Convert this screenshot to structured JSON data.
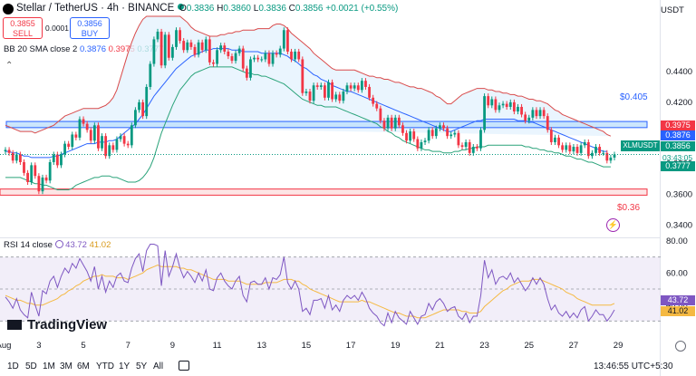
{
  "header": {
    "title": "Stellar / TetherUS · 4h · BINANCE",
    "ohlc": {
      "o": "0.3836",
      "h": "0.3860",
      "l": "0.3836",
      "c": "0.3856",
      "chg": "+0.0021 (+0.55%)"
    },
    "sell_price": "0.3855",
    "sell_label": "SELL",
    "buy_price": "0.3856",
    "buy_label": "BUY",
    "spread": "0.0001"
  },
  "legend": {
    "bb_label": "BB 20 SMA close 2",
    "bb_basis": "0.3876",
    "bb_upper": "0.3975",
    "bb_lower": "0.3777",
    "rsi_label": "RSI 14 close",
    "rsi_value": "43.72",
    "rsi_ma": "41.02"
  },
  "axis": {
    "currency": "USDT",
    "last_time_label": "13:46:55 UTC+5:30"
  },
  "tags": {
    "symbol": "XLMUSDT",
    "countdown": "03:43:05",
    "resistance_label": "$0.405",
    "support_label": "$0.36"
  },
  "brand": "TradingView",
  "toolbar": {
    "ranges": [
      "1D",
      "5D",
      "1M",
      "3M",
      "6M",
      "YTD",
      "1Y",
      "5Y",
      "All"
    ]
  },
  "colors": {
    "up": "#089981",
    "down": "#f23645",
    "basis": "#2962ff",
    "bb_fill": "#e3f2fd",
    "rsi": "#7e57c2",
    "rsi_ma": "#f5b942",
    "zone_blue": "#2962ff",
    "zone_red": "#f23645"
  },
  "chart_data": {
    "type": "candlestick",
    "symbol": "Stellar / TetherUS",
    "timeframe": "4h",
    "price_ylim": [
      0.332,
      0.476
    ],
    "price_ticks": [
      "0.4400",
      "0.4200",
      "0.4000",
      "0.3800",
      "0.3600",
      "0.3400"
    ],
    "x_ticks": [
      {
        "label": "Aug",
        "index": -1
      },
      {
        "label": "3",
        "index": 9
      },
      {
        "label": "5",
        "index": 21
      },
      {
        "label": "7",
        "index": 33
      },
      {
        "label": "9",
        "index": 45
      },
      {
        "label": "11",
        "index": 57
      },
      {
        "label": "13",
        "index": 69
      },
      {
        "label": "15",
        "index": 81
      },
      {
        "label": "17",
        "index": 93
      },
      {
        "label": "19",
        "index": 105
      },
      {
        "label": "21",
        "index": 117
      },
      {
        "label": "23",
        "index": 129
      },
      {
        "label": "25",
        "index": 141
      },
      {
        "label": "27",
        "index": 153
      },
      {
        "label": "29",
        "index": 165
      }
    ],
    "close": [
      0.389,
      0.387,
      0.382,
      0.386,
      0.381,
      0.374,
      0.368,
      0.379,
      0.372,
      0.362,
      0.371,
      0.369,
      0.381,
      0.386,
      0.379,
      0.386,
      0.393,
      0.391,
      0.399,
      0.397,
      0.409,
      0.406,
      0.402,
      0.395,
      0.405,
      0.39,
      0.398,
      0.385,
      0.392,
      0.389,
      0.396,
      0.398,
      0.393,
      0.392,
      0.405,
      0.415,
      0.42,
      0.411,
      0.43,
      0.445,
      0.461,
      0.466,
      0.444,
      0.464,
      0.449,
      0.456,
      0.467,
      0.46,
      0.454,
      0.459,
      0.456,
      0.451,
      0.459,
      0.454,
      0.461,
      0.446,
      0.445,
      0.454,
      0.457,
      0.453,
      0.45,
      0.447,
      0.452,
      0.455,
      0.442,
      0.436,
      0.448,
      0.449,
      0.448,
      0.448,
      0.452,
      0.445,
      0.452,
      0.451,
      0.455,
      0.467,
      0.453,
      0.448,
      0.453,
      0.448,
      0.426,
      0.427,
      0.421,
      0.431,
      0.43,
      0.431,
      0.423,
      0.433,
      0.422,
      0.425,
      0.421,
      0.427,
      0.431,
      0.429,
      0.431,
      0.428,
      0.434,
      0.43,
      0.423,
      0.419,
      0.416,
      0.408,
      0.403,
      0.41,
      0.403,
      0.41,
      0.405,
      0.4,
      0.395,
      0.401,
      0.396,
      0.39,
      0.394,
      0.395,
      0.402,
      0.398,
      0.403,
      0.405,
      0.403,
      0.398,
      0.399,
      0.4,
      0.392,
      0.391,
      0.394,
      0.387,
      0.391,
      0.39,
      0.402,
      0.424,
      0.418,
      0.422,
      0.415,
      0.418,
      0.419,
      0.417,
      0.42,
      0.414,
      0.417,
      0.412,
      0.408,
      0.41,
      0.415,
      0.411,
      0.415,
      0.411,
      0.402,
      0.394,
      0.397,
      0.392,
      0.389,
      0.392,
      0.388,
      0.391,
      0.387,
      0.392,
      0.394,
      0.385,
      0.387,
      0.391,
      0.387,
      0.387,
      0.382,
      0.384,
      0.386
    ],
    "bb_upper": [
      0.405,
      0.404,
      0.403,
      0.402,
      0.401,
      0.401,
      0.401,
      0.401,
      0.4,
      0.401,
      0.402,
      0.403,
      0.404,
      0.405,
      0.407,
      0.409,
      0.411,
      0.412,
      0.413,
      0.414,
      0.415,
      0.416,
      0.416,
      0.416,
      0.416,
      0.416,
      0.417,
      0.418,
      0.42,
      0.423,
      0.428,
      0.436,
      0.444,
      0.452,
      0.459,
      0.465,
      0.47,
      0.474,
      0.477,
      0.479,
      0.48,
      0.481,
      0.482,
      0.482,
      0.481,
      0.48,
      0.478,
      0.476,
      0.474,
      0.472,
      0.469,
      0.467,
      0.466,
      0.465,
      0.464,
      0.463,
      0.463,
      0.463,
      0.464,
      0.464,
      0.465,
      0.465,
      0.466,
      0.466,
      0.467,
      0.467,
      0.467,
      0.467,
      0.468,
      0.468,
      0.468,
      0.468,
      0.47,
      0.471,
      0.471,
      0.47,
      0.468,
      0.465,
      0.463,
      0.461,
      0.459,
      0.457,
      0.455,
      0.452,
      0.45,
      0.448,
      0.446,
      0.444,
      0.442,
      0.441,
      0.441,
      0.441,
      0.441,
      0.441,
      0.441,
      0.44,
      0.439,
      0.438,
      0.437,
      0.437,
      0.436,
      0.436,
      0.435,
      0.435,
      0.434,
      0.433,
      0.433,
      0.432,
      0.431,
      0.43,
      0.43,
      0.429,
      0.429,
      0.428,
      0.427,
      0.426,
      0.424,
      0.423,
      0.421,
      0.419,
      0.419,
      0.421,
      0.423,
      0.425,
      0.426,
      0.427,
      0.428,
      0.429,
      0.429,
      0.429,
      0.428,
      0.428,
      0.427,
      0.427,
      0.426,
      0.426,
      0.425,
      0.425,
      0.424,
      0.424,
      0.423,
      0.422,
      0.422,
      0.421,
      0.421,
      0.42,
      0.419,
      0.417,
      0.415,
      0.414,
      0.412,
      0.411,
      0.41,
      0.409,
      0.408,
      0.407,
      0.406,
      0.405,
      0.404,
      0.403,
      0.402,
      0.401,
      0.399,
      0.398
    ],
    "bb_basis": [
      0.388,
      0.388,
      0.387,
      0.387,
      0.386,
      0.385,
      0.385,
      0.384,
      0.384,
      0.384,
      0.384,
      0.384,
      0.384,
      0.385,
      0.385,
      0.386,
      0.387,
      0.388,
      0.389,
      0.39,
      0.391,
      0.392,
      0.393,
      0.393,
      0.393,
      0.394,
      0.394,
      0.394,
      0.395,
      0.395,
      0.396,
      0.398,
      0.4,
      0.402,
      0.404,
      0.406,
      0.409,
      0.412,
      0.416,
      0.42,
      0.424,
      0.427,
      0.43,
      0.433,
      0.436,
      0.439,
      0.442,
      0.444,
      0.446,
      0.448,
      0.45,
      0.451,
      0.452,
      0.453,
      0.454,
      0.454,
      0.455,
      0.455,
      0.455,
      0.455,
      0.455,
      0.454,
      0.454,
      0.454,
      0.453,
      0.453,
      0.453,
      0.453,
      0.453,
      0.452,
      0.452,
      0.452,
      0.452,
      0.452,
      0.452,
      0.451,
      0.45,
      0.448,
      0.447,
      0.445,
      0.443,
      0.442,
      0.44,
      0.438,
      0.437,
      0.435,
      0.434,
      0.433,
      0.431,
      0.43,
      0.429,
      0.428,
      0.427,
      0.427,
      0.426,
      0.425,
      0.424,
      0.423,
      0.422,
      0.421,
      0.42,
      0.419,
      0.418,
      0.417,
      0.416,
      0.415,
      0.414,
      0.413,
      0.412,
      0.411,
      0.41,
      0.409,
      0.408,
      0.407,
      0.406,
      0.405,
      0.404,
      0.403,
      0.402,
      0.401,
      0.401,
      0.402,
      0.403,
      0.404,
      0.405,
      0.406,
      0.407,
      0.408,
      0.408,
      0.409,
      0.409,
      0.409,
      0.409,
      0.409,
      0.409,
      0.409,
      0.409,
      0.409,
      0.408,
      0.408,
      0.408,
      0.407,
      0.407,
      0.406,
      0.405,
      0.404,
      0.403,
      0.402,
      0.401,
      0.4,
      0.399,
      0.398,
      0.397,
      0.396,
      0.395,
      0.394,
      0.393,
      0.392,
      0.391,
      0.39,
      0.389,
      0.388,
      0.388
    ],
    "bb_lower": [
      0.371,
      0.371,
      0.371,
      0.371,
      0.371,
      0.37,
      0.369,
      0.368,
      0.367,
      0.367,
      0.366,
      0.366,
      0.365,
      0.364,
      0.363,
      0.363,
      0.363,
      0.363,
      0.364,
      0.366,
      0.367,
      0.368,
      0.369,
      0.37,
      0.371,
      0.371,
      0.372,
      0.372,
      0.372,
      0.371,
      0.371,
      0.37,
      0.369,
      0.368,
      0.368,
      0.368,
      0.369,
      0.371,
      0.374,
      0.378,
      0.384,
      0.392,
      0.4,
      0.406,
      0.412,
      0.418,
      0.423,
      0.428,
      0.431,
      0.434,
      0.437,
      0.439,
      0.44,
      0.441,
      0.442,
      0.443,
      0.443,
      0.443,
      0.443,
      0.443,
      0.443,
      0.443,
      0.442,
      0.441,
      0.44,
      0.439,
      0.439,
      0.438,
      0.438,
      0.437,
      0.437,
      0.436,
      0.435,
      0.434,
      0.433,
      0.432,
      0.43,
      0.428,
      0.426,
      0.424,
      0.422,
      0.421,
      0.42,
      0.419,
      0.418,
      0.418,
      0.417,
      0.417,
      0.417,
      0.417,
      0.416,
      0.415,
      0.414,
      0.413,
      0.412,
      0.411,
      0.41,
      0.409,
      0.408,
      0.407,
      0.406,
      0.404,
      0.403,
      0.401,
      0.4,
      0.398,
      0.397,
      0.395,
      0.394,
      0.393,
      0.392,
      0.391,
      0.39,
      0.389,
      0.389,
      0.388,
      0.388,
      0.388,
      0.387,
      0.387,
      0.387,
      0.388,
      0.388,
      0.389,
      0.389,
      0.39,
      0.39,
      0.391,
      0.391,
      0.391,
      0.392,
      0.392,
      0.392,
      0.392,
      0.392,
      0.392,
      0.392,
      0.392,
      0.392,
      0.392,
      0.391,
      0.391,
      0.39,
      0.39,
      0.389,
      0.389,
      0.388,
      0.388,
      0.387,
      0.387,
      0.386,
      0.385,
      0.385,
      0.384,
      0.383,
      0.383,
      0.382,
      0.381,
      0.381,
      0.38,
      0.379,
      0.378,
      0.378,
      0.378
    ],
    "rsi_ylim": [
      20,
      80
    ],
    "rsi_ticks": [
      80,
      60,
      40
    ],
    "rsi_band": [
      70,
      30
    ],
    "rsi": [
      45,
      42,
      38,
      44,
      37,
      34,
      32,
      48,
      40,
      33,
      49,
      47,
      55,
      58,
      51,
      58,
      63,
      60,
      66,
      63,
      69,
      65,
      61,
      55,
      64,
      50,
      58,
      48,
      55,
      51,
      58,
      60,
      55,
      54,
      63,
      69,
      72,
      61,
      74,
      78,
      78,
      77,
      52,
      74,
      58,
      64,
      72,
      63,
      57,
      61,
      58,
      54,
      60,
      55,
      62,
      50,
      49,
      57,
      60,
      55,
      52,
      50,
      55,
      58,
      46,
      42,
      54,
      55,
      53,
      53,
      57,
      50,
      57,
      56,
      59,
      70,
      54,
      50,
      55,
      50,
      36,
      38,
      34,
      43,
      43,
      44,
      38,
      46,
      37,
      40,
      36,
      43,
      46,
      44,
      46,
      43,
      48,
      44,
      38,
      35,
      33,
      29,
      27,
      35,
      29,
      36,
      32,
      30,
      28,
      36,
      32,
      28,
      33,
      34,
      41,
      37,
      42,
      44,
      41,
      36,
      38,
      39,
      33,
      31,
      35,
      29,
      33,
      33,
      46,
      68,
      57,
      62,
      53,
      57,
      58,
      56,
      60,
      54,
      57,
      53,
      49,
      52,
      57,
      53,
      57,
      53,
      44,
      37,
      40,
      35,
      33,
      36,
      32,
      35,
      32,
      37,
      39,
      30,
      33,
      37,
      34,
      34,
      30,
      33,
      37
    ],
    "rsi_ma": [
      46,
      45,
      44,
      43,
      43,
      42,
      41,
      41,
      40,
      40,
      40,
      41,
      42,
      43,
      44,
      46,
      47,
      49,
      50,
      52,
      53,
      55,
      56,
      57,
      58,
      58,
      59,
      58,
      58,
      58,
      57,
      57,
      57,
      56,
      57,
      58,
      59,
      60,
      62,
      63,
      64,
      65,
      64,
      64,
      64,
      64,
      64,
      63,
      63,
      62,
      62,
      61,
      60,
      59,
      58,
      57,
      56,
      56,
      56,
      56,
      55,
      55,
      55,
      55,
      54,
      53,
      53,
      53,
      53,
      53,
      54,
      54,
      54,
      54,
      55,
      56,
      56,
      56,
      55,
      55,
      53,
      52,
      50,
      49,
      48,
      47,
      46,
      45,
      44,
      43,
      42,
      42,
      42,
      42,
      42,
      42,
      43,
      42,
      42,
      41,
      40,
      39,
      38,
      37,
      36,
      35,
      35,
      34,
      33,
      33,
      33,
      32,
      32,
      32,
      33,
      34,
      35,
      36,
      37,
      37,
      37,
      37,
      37,
      36,
      36,
      35,
      35,
      35,
      36,
      39,
      41,
      43,
      45,
      47,
      49,
      50,
      52,
      53,
      54,
      55,
      55,
      55,
      56,
      56,
      56,
      55,
      54,
      53,
      52,
      51,
      50,
      48,
      47,
      46,
      44,
      43,
      42,
      41,
      40,
      40,
      40,
      40,
      40,
      40,
      41
    ],
    "resistance_zone": [
      0.4035,
      0.4075
    ],
    "support_zone": [
      0.3595,
      0.3635
    ]
  }
}
